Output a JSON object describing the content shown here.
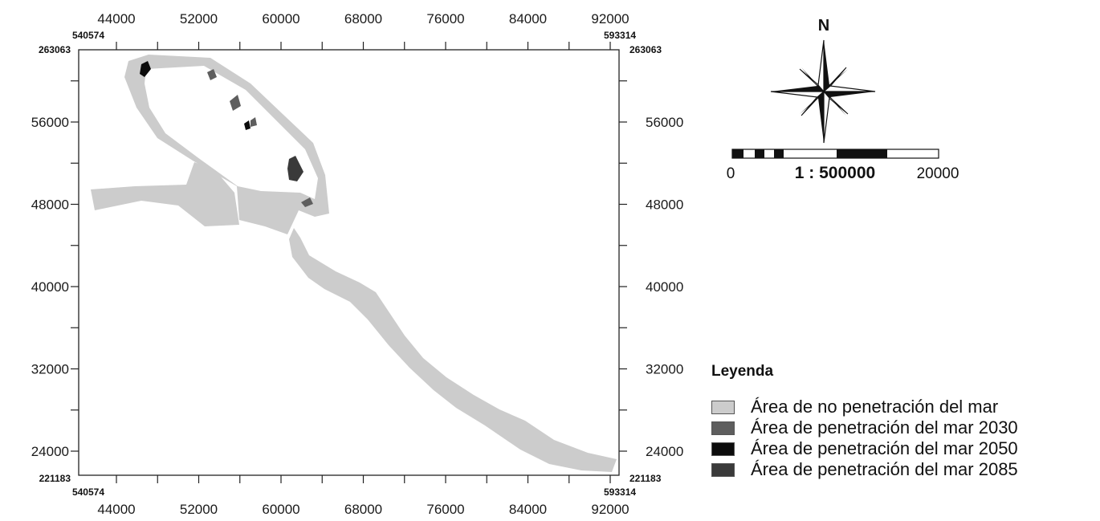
{
  "map": {
    "top_ticks": [
      "44000",
      "52000",
      "60000",
      "68000",
      "76000",
      "84000",
      "92000"
    ],
    "bottom_ticks": [
      "44000",
      "52000",
      "60000",
      "68000",
      "76000",
      "84000",
      "92000"
    ],
    "left_ticks": [
      "56000",
      "48000",
      "40000",
      "32000",
      "24000"
    ],
    "right_ticks": [
      "56000",
      "48000",
      "40000",
      "32000",
      "24000"
    ],
    "corners": {
      "top_left_x": "540574",
      "top_left_y": "263063",
      "top_right_x": "593314",
      "top_right_y": "263063",
      "bottom_left_x": "540574",
      "bottom_left_y": "221183",
      "bottom_right_x": "593314",
      "bottom_right_y": "221183"
    }
  },
  "north_arrow": {
    "label": "N"
  },
  "scale_bar": {
    "start": "0",
    "ratio": "1 : 500000",
    "end": "20000"
  },
  "legend": {
    "title": "Leyenda",
    "items": [
      {
        "label": "Área de no penetración del mar",
        "color": "#cccccc"
      },
      {
        "label": "Área de penetración del mar 2030",
        "color": "#5e5e5e"
      },
      {
        "label": "Área de penetración del mar 2050",
        "color": "#0c0c0c"
      },
      {
        "label": "Área de penetración del mar 2085",
        "color": "#3a3a3a"
      }
    ]
  },
  "colors": {
    "no_penetration": "#cccccc",
    "penetration_2030": "#5e5e5e",
    "penetration_2050": "#0c0c0c",
    "penetration_2085": "#3a3a3a"
  }
}
